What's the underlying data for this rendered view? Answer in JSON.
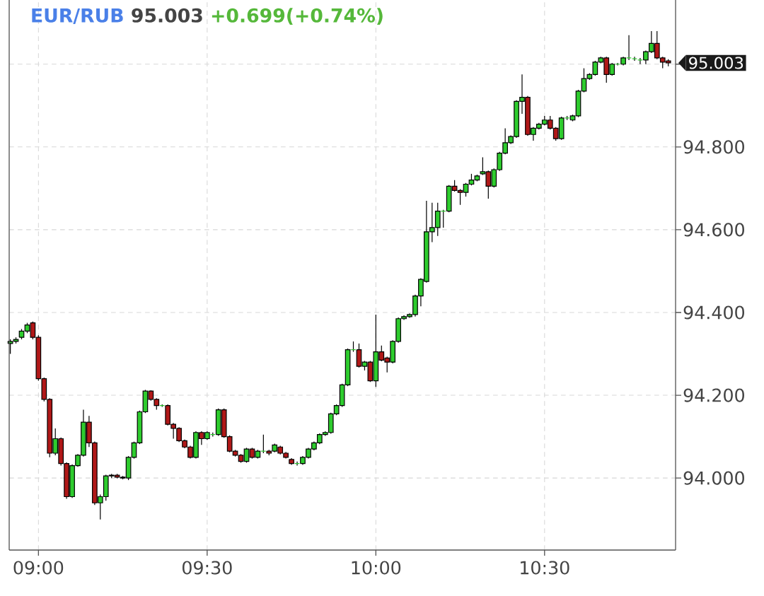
{
  "chart_data": {
    "type": "candlestick",
    "title": "EUR/RUB",
    "subtitle": "95.003",
    "annotations": [
      "+0.699(+0.74%)",
      "95.003"
    ],
    "xlim": [
      8.9133,
      10.8883
    ],
    "ylim": [
      93.826,
      95.155
    ],
    "xticks": [
      {
        "value": 9,
        "label": "09:00"
      },
      {
        "value": 9.5,
        "label": "09:30"
      },
      {
        "value": 10,
        "label": "10:00"
      },
      {
        "value": 10.5,
        "label": "10:30"
      }
    ],
    "yticks": [
      {
        "value": 94,
        "label": "94.000"
      },
      {
        "value": 94.2,
        "label": "94.200"
      },
      {
        "value": 94.4,
        "label": "94.400"
      },
      {
        "value": 94.6,
        "label": "94.600"
      },
      {
        "value": 94.8,
        "label": "94.800"
      },
      {
        "value": 95,
        "label": null
      }
    ],
    "grid": true,
    "series": [
      {
        "color": "#2ecc2e",
        "x": [
          8.9167,
          8.9333,
          8.95,
          8.9667,
          9.05,
          9.1,
          9.1167,
          9.1333,
          9.1833,
          9.2,
          9.2167,
          9.2667,
          9.2833,
          9.3,
          9.3167,
          9.3667,
          9.4667,
          9.5,
          9.5167,
          9.5333,
          9.6167,
          9.65,
          9.6667,
          9.7,
          9.7667,
          9.7833,
          9.8,
          9.8167,
          9.8333,
          9.85,
          9.8667,
          9.8833,
          9.9,
          9.9167,
          9.9333,
          9.9667,
          10,
          10.05,
          10.0667,
          10.0833,
          10.1,
          10.1167,
          10.1333,
          10.15,
          10.1667,
          10.1833,
          10.2,
          10.2167,
          10.2667,
          10.2833,
          10.3,
          10.3167,
          10.35,
          10.3667,
          10.3833,
          10.4,
          10.4167,
          10.4333,
          10.4667,
          10.4833,
          10.5,
          10.55,
          10.5667,
          10.5833,
          10.6,
          10.6167,
          10.6333,
          10.65,
          10.6667,
          10.7,
          10.7167,
          10.7333,
          10.75,
          10.7667,
          10.7833,
          10.8,
          10.8167
        ],
        "ohlc": [
          [
            94.325,
            94.335,
            94.3,
            94.33
          ],
          [
            94.33,
            94.34,
            94.325,
            94.335
          ],
          [
            94.34,
            94.36,
            94.335,
            94.355
          ],
          [
            94.355,
            94.375,
            94.35,
            94.37
          ],
          [
            94.06,
            94.12,
            94.055,
            94.095
          ],
          [
            93.955,
            94.033,
            93.952,
            94.03
          ],
          [
            94.03,
            94.058,
            94.027,
            94.055
          ],
          [
            94.055,
            94.165,
            94.052,
            94.135
          ],
          [
            93.94,
            93.96,
            93.9,
            93.955
          ],
          [
            93.955,
            94.008,
            93.945,
            94.005
          ],
          [
            94.005,
            94.01,
            94.0,
            94.007
          ],
          [
            94.0,
            94.053,
            93.995,
            94.05
          ],
          [
            94.05,
            94.088,
            94.047,
            94.085
          ],
          [
            94.085,
            94.163,
            94.082,
            94.16
          ],
          [
            94.16,
            94.213,
            94.157,
            94.21
          ],
          [
            94.175,
            94.178,
            94.172,
            94.175
          ],
          [
            94.05,
            94.113,
            94.047,
            94.11
          ],
          [
            94.095,
            94.113,
            94.092,
            94.11
          ],
          [
            94.105,
            94.11,
            94.1,
            94.105
          ],
          [
            94.105,
            94.168,
            94.102,
            94.165
          ],
          [
            94.04,
            94.073,
            94.037,
            94.07
          ],
          [
            94.05,
            94.068,
            94.047,
            94.065
          ],
          [
            94.065,
            94.105,
            94.06,
            94.065
          ],
          [
            94.065,
            94.083,
            94.062,
            94.08
          ],
          [
            94.035,
            94.04,
            94.03,
            94.035
          ],
          [
            94.035,
            94.053,
            94.032,
            94.05
          ],
          [
            94.05,
            94.073,
            94.047,
            94.07
          ],
          [
            94.07,
            94.088,
            94.067,
            94.085
          ],
          [
            94.085,
            94.108,
            94.082,
            94.105
          ],
          [
            94.105,
            94.113,
            94.102,
            94.11
          ],
          [
            94.11,
            94.158,
            94.107,
            94.155
          ],
          [
            94.155,
            94.178,
            94.152,
            94.175
          ],
          [
            94.175,
            94.228,
            94.172,
            94.225
          ],
          [
            94.225,
            94.313,
            94.222,
            94.31
          ],
          [
            94.31,
            94.33,
            94.305,
            94.31
          ],
          [
            94.27,
            94.283,
            94.26,
            94.28
          ],
          [
            94.235,
            94.395,
            94.22,
            94.305
          ],
          [
            94.28,
            94.333,
            94.277,
            94.33
          ],
          [
            94.33,
            94.388,
            94.327,
            94.385
          ],
          [
            94.385,
            94.393,
            94.382,
            94.39
          ],
          [
            94.39,
            94.398,
            94.387,
            94.395
          ],
          [
            94.395,
            94.443,
            94.39,
            94.44
          ],
          [
            94.44,
            94.483,
            94.415,
            94.48
          ],
          [
            94.475,
            94.67,
            94.472,
            94.595
          ],
          [
            94.595,
            94.665,
            94.57,
            94.605
          ],
          [
            94.605,
            94.665,
            94.585,
            94.645
          ],
          [
            94.645,
            94.648,
            94.605,
            94.645
          ],
          [
            94.645,
            94.708,
            94.642,
            94.705
          ],
          [
            94.69,
            94.713,
            94.68,
            94.71
          ],
          [
            94.71,
            94.735,
            94.707,
            94.72
          ],
          [
            94.72,
            94.733,
            94.717,
            94.73
          ],
          [
            94.735,
            94.775,
            94.732,
            94.74
          ],
          [
            94.705,
            94.748,
            94.702,
            94.745
          ],
          [
            94.745,
            94.788,
            94.742,
            94.785
          ],
          [
            94.785,
            94.845,
            94.782,
            94.81
          ],
          [
            94.81,
            94.828,
            94.807,
            94.825
          ],
          [
            94.825,
            94.913,
            94.822,
            94.91
          ],
          [
            94.91,
            94.975,
            94.88,
            94.92
          ],
          [
            94.83,
            94.848,
            94.815,
            94.845
          ],
          [
            94.845,
            94.858,
            94.842,
            94.855
          ],
          [
            94.855,
            94.875,
            94.852,
            94.865
          ],
          [
            94.82,
            94.873,
            94.817,
            94.87
          ],
          [
            94.87,
            94.875,
            94.865,
            94.87
          ],
          [
            94.865,
            94.878,
            94.862,
            94.875
          ],
          [
            94.875,
            94.938,
            94.872,
            94.935
          ],
          [
            94.935,
            94.99,
            94.932,
            94.965
          ],
          [
            94.965,
            94.978,
            94.962,
            94.975
          ],
          [
            94.975,
            95.008,
            94.972,
            95.005
          ],
          [
            95.005,
            95.018,
            95.002,
            95.015
          ],
          [
            94.975,
            95.003,
            94.972,
            95.0
          ],
          [
            95.0,
            95.003,
            94.997,
            95.0
          ],
          [
            95.0,
            95.018,
            94.997,
            95.015
          ],
          [
            95.015,
            95.07,
            95.01,
            95.015
          ],
          [
            95.013,
            95.018,
            95.008,
            95.013
          ],
          [
            95.01,
            95.015,
            95.0,
            95.01
          ],
          [
            95.01,
            95.033,
            95.0,
            95.03
          ],
          [
            95.03,
            95.08,
            95.027,
            95.05
          ]
        ]
      },
      {
        "color": "#b01818",
        "x": [
          8.9833,
          9,
          9.0167,
          9.0333,
          9.0667,
          9.0833,
          9.15,
          9.1667,
          9.2333,
          9.25,
          9.3333,
          9.35,
          9.3833,
          9.4,
          9.4167,
          9.4333,
          9.45,
          9.4833,
          9.55,
          9.5667,
          9.5833,
          9.6,
          9.6333,
          9.6833,
          9.7167,
          9.7333,
          9.75,
          9.95,
          9.9833,
          10.0167,
          10.0333,
          10.2333,
          10.25,
          10.3333,
          10.45,
          10.5167,
          10.5333,
          10.6833,
          10.8333,
          10.85,
          10.8667
        ],
        "ohlc": [
          [
            94.375,
            94.378,
            94.335,
            94.34
          ],
          [
            94.34,
            94.345,
            94.235,
            94.24
          ],
          [
            94.24,
            94.243,
            94.185,
            94.19
          ],
          [
            94.19,
            94.193,
            94.05,
            94.06
          ],
          [
            94.095,
            94.098,
            94.03,
            94.035
          ],
          [
            94.035,
            94.038,
            93.95,
            93.955
          ],
          [
            94.135,
            94.15,
            94.075,
            94.085
          ],
          [
            94.085,
            94.088,
            93.935,
            93.94
          ],
          [
            94.007,
            94.01,
            93.999,
            94.002
          ],
          [
            94.002,
            94.005,
            93.997,
            94.0
          ],
          [
            94.21,
            94.212,
            94.187,
            94.19
          ],
          [
            94.19,
            94.193,
            94.165,
            94.175
          ],
          [
            94.175,
            94.178,
            94.127,
            94.13
          ],
          [
            94.13,
            94.133,
            94.095,
            94.12
          ],
          [
            94.12,
            94.123,
            94.087,
            94.09
          ],
          [
            94.09,
            94.093,
            94.072,
            94.075
          ],
          [
            94.075,
            94.078,
            94.047,
            94.05
          ],
          [
            94.11,
            94.113,
            94.08,
            94.095
          ],
          [
            94.165,
            94.168,
            94.097,
            94.1
          ],
          [
            94.1,
            94.103,
            94.062,
            94.065
          ],
          [
            94.065,
            94.068,
            94.052,
            94.055
          ],
          [
            94.055,
            94.058,
            94.037,
            94.04
          ],
          [
            94.07,
            94.073,
            94.047,
            94.05
          ],
          [
            94.065,
            94.068,
            94.055,
            94.06
          ],
          [
            94.075,
            94.078,
            94.057,
            94.06
          ],
          [
            94.06,
            94.063,
            94.047,
            94.05
          ],
          [
            94.045,
            94.048,
            94.032,
            94.035
          ],
          [
            94.31,
            94.325,
            94.267,
            94.27
          ],
          [
            94.28,
            94.283,
            94.232,
            94.235
          ],
          [
            94.305,
            94.32,
            94.282,
            94.285
          ],
          [
            94.29,
            94.293,
            94.255,
            94.28
          ],
          [
            94.705,
            94.72,
            94.692,
            94.695
          ],
          [
            94.695,
            94.698,
            94.66,
            94.69
          ],
          [
            94.74,
            94.743,
            94.675,
            94.705
          ],
          [
            94.92,
            94.923,
            94.827,
            94.83
          ],
          [
            94.865,
            94.875,
            94.842,
            94.845
          ],
          [
            94.845,
            94.848,
            94.815,
            94.82
          ],
          [
            95.015,
            95.018,
            94.955,
            94.975
          ],
          [
            95.05,
            95.08,
            95.012,
            95.015
          ],
          [
            95.015,
            95.018,
            94.99,
            95.005
          ],
          [
            95.008,
            95.012,
            94.995,
            95.003
          ]
        ]
      }
    ]
  }
}
